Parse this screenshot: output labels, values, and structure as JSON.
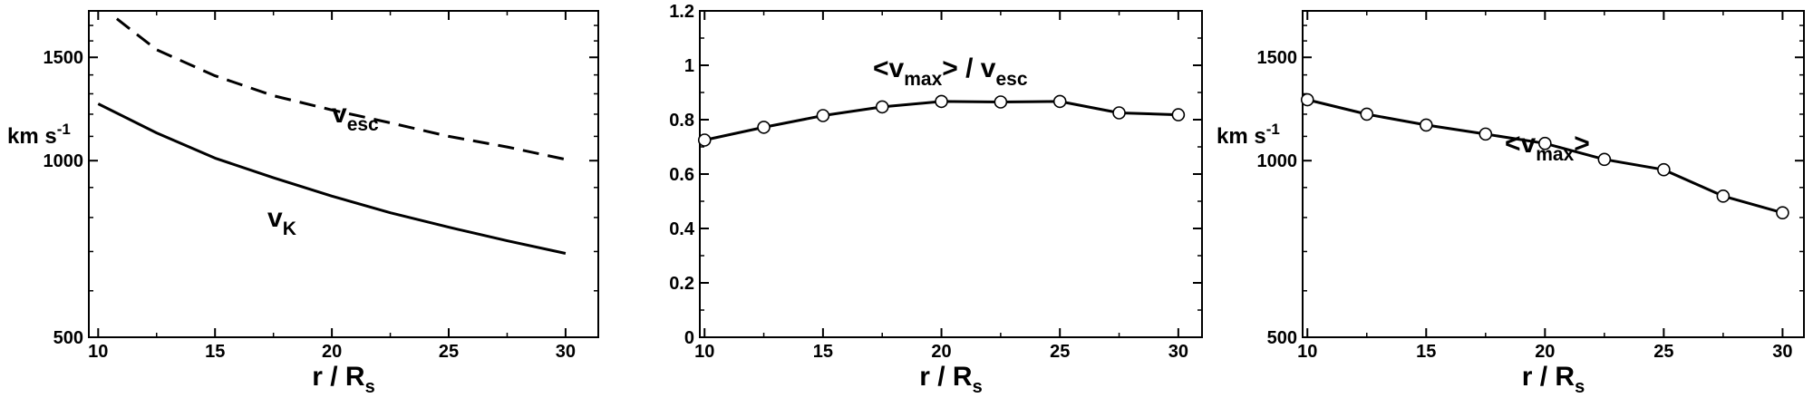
{
  "chart_data": [
    {
      "type": "line",
      "xlabel": {
        "main": "r / R",
        "sub": "s"
      },
      "ylabel": {
        "main": "km s",
        "sup": "-1"
      },
      "xlim": [
        9.6,
        31.4
      ],
      "xticks": [
        10,
        15,
        20,
        25,
        30
      ],
      "ylim": [
        500,
        1800
      ],
      "ylog": true,
      "yticks": [
        500,
        1000,
        1500
      ],
      "series": [
        {
          "name": "v_esc",
          "style": "dashed",
          "markers": false,
          "x": [
            10.8,
            12.5,
            15,
            17.5,
            20,
            22.5,
            25,
            27.5,
            30
          ],
          "y": [
            1745,
            1545,
            1395,
            1290,
            1220,
            1160,
            1100,
            1055,
            1005
          ]
        },
        {
          "name": "v_K",
          "style": "solid",
          "markers": false,
          "x": [
            10,
            12.5,
            15,
            17.5,
            20,
            22.5,
            25,
            27.5,
            30
          ],
          "y": [
            1250,
            1115,
            1010,
            935,
            870,
            815,
            770,
            730,
            695
          ]
        }
      ],
      "annotations": [
        {
          "main": "v",
          "sub": "esc"
        },
        {
          "main": "v",
          "sub": "K"
        }
      ]
    },
    {
      "type": "line",
      "xlabel": {
        "main": "r / R",
        "sub": "s"
      },
      "ylabel": null,
      "xlim": [
        9.8,
        31
      ],
      "xticks": [
        10,
        15,
        20,
        25,
        30
      ],
      "ylim": [
        0,
        1.2
      ],
      "ylog": false,
      "yticks": [
        0,
        0.2,
        0.4,
        0.6,
        0.8,
        1,
        1.2
      ],
      "series": [
        {
          "name": "<v_max> / v_esc",
          "style": "solid",
          "markers": true,
          "x": [
            10,
            12.5,
            15,
            17.5,
            20,
            22.5,
            25,
            27.5,
            30
          ],
          "y": [
            0.725,
            0.772,
            0.815,
            0.847,
            0.867,
            0.865,
            0.867,
            0.825,
            0.818
          ]
        }
      ],
      "annotations": [
        {
          "parts": [
            "<v",
            "max",
            "> / v",
            "esc"
          ]
        }
      ]
    },
    {
      "type": "line",
      "xlabel": {
        "main": "r / R",
        "sub": "s"
      },
      "ylabel": {
        "main": "km s",
        "sup": "-1"
      },
      "xlim": [
        9.8,
        30.9
      ],
      "xticks": [
        10,
        15,
        20,
        25,
        30
      ],
      "ylim": [
        500,
        1800
      ],
      "ylog": true,
      "yticks": [
        500,
        1000,
        1500
      ],
      "series": [
        {
          "name": "<v_max>",
          "style": "solid",
          "markers": true,
          "x": [
            10,
            12.5,
            15,
            17.5,
            20,
            22.5,
            25,
            27.5,
            30
          ],
          "y": [
            1270,
            1200,
            1150,
            1110,
            1070,
            1005,
            965,
            870,
            815
          ]
        }
      ],
      "annotations": [
        {
          "parts": [
            "<v",
            "max",
            ">"
          ]
        }
      ]
    }
  ]
}
